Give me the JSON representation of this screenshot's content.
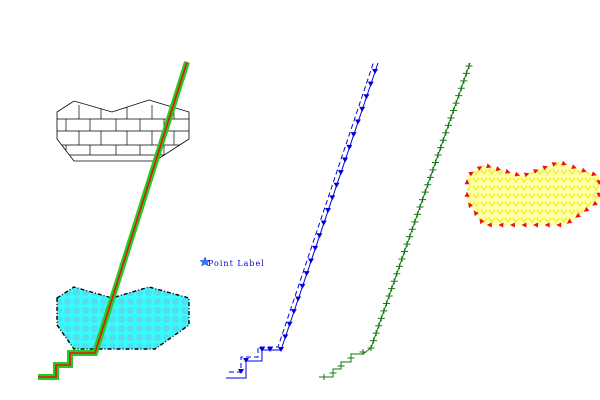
{
  "labels": {
    "point_label": "Point Label"
  },
  "colors": {
    "background": "#ffffff",
    "line_green": "#22cc22",
    "line_red": "#ee1111",
    "cyan_fill": "#33ffff",
    "cyan_dots": "#55ddee",
    "blue": "#0000dd",
    "dark_green": "#117711",
    "red_arrows": "#ee1111",
    "yellow_fill": "#ffffaa",
    "yellow_marks": "#eeee22",
    "outline": "#000000",
    "point_marker": "#3377ff"
  },
  "icons": {
    "point_marker": "star-marker-icon"
  }
}
